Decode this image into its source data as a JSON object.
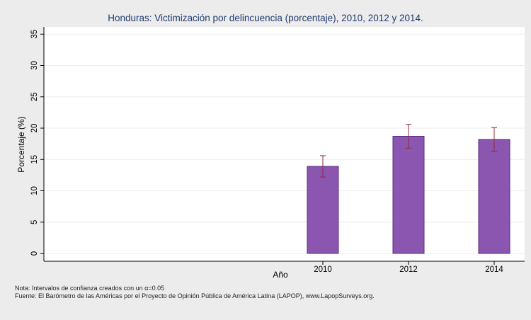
{
  "chart_data": {
    "type": "bar",
    "title": "Honduras: Victimización por delincuencia (porcentaje), 2010, 2012 y 2014.",
    "xlabel": "Año",
    "ylabel": "Porcentaje (%)",
    "categories": [
      "2010",
      "2012",
      "2014"
    ],
    "values": [
      13.9,
      18.7,
      18.2
    ],
    "ci_low": [
      12.2,
      16.8,
      16.3
    ],
    "ci_high": [
      15.6,
      20.6,
      20.1
    ],
    "ylim": [
      0,
      36
    ],
    "yticks": [
      0,
      5,
      10,
      15,
      20,
      25,
      30,
      35
    ],
    "grid": true,
    "bar_color": "#8a56b0",
    "bar_border_color": "#5c2c80",
    "error_color": "#8b2e3b",
    "background_color": "#ececec",
    "plot_background_color": "#ffffff"
  },
  "notes": {
    "line1_prefix": "Nota: Intervalos de confianza creados con un ",
    "line1_alpha": "α",
    "line1_suffix": "=0.05",
    "line2": "Fuente: El Barómetro de las Américas por el Proyecto de Opinión Pública de América Latina (LAPOP), www.LapopSurveys.org."
  }
}
